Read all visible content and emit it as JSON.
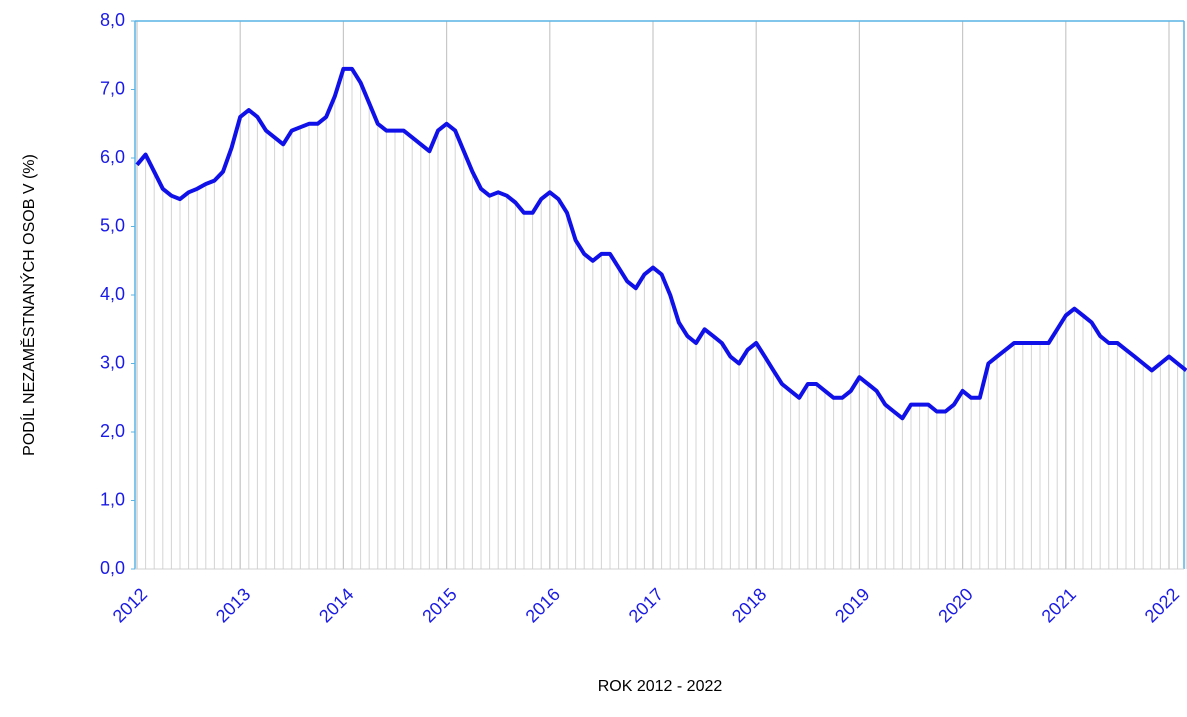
{
  "chart_data": {
    "type": "line",
    "x_label": "ROK 2012 - 2022",
    "y_label": "PODÍL NEZAMĚSTNANÝCH OSOB V (%)",
    "categories": [
      "2012",
      null,
      null,
      null,
      null,
      null,
      null,
      null,
      null,
      null,
      null,
      null,
      "2013",
      null,
      null,
      null,
      null,
      null,
      null,
      null,
      null,
      null,
      null,
      null,
      "2014",
      null,
      null,
      null,
      null,
      null,
      null,
      null,
      null,
      null,
      null,
      null,
      "2015",
      null,
      null,
      null,
      null,
      null,
      null,
      null,
      null,
      null,
      null,
      null,
      "2016",
      null,
      null,
      null,
      null,
      null,
      null,
      null,
      null,
      null,
      null,
      null,
      "2017",
      null,
      null,
      null,
      null,
      null,
      null,
      null,
      null,
      null,
      null,
      null,
      "2018",
      null,
      null,
      null,
      null,
      null,
      null,
      null,
      null,
      null,
      null,
      null,
      "2019",
      null,
      null,
      null,
      null,
      null,
      null,
      null,
      null,
      null,
      null,
      null,
      "2020",
      null,
      null,
      null,
      null,
      null,
      null,
      null,
      null,
      null,
      null,
      null,
      "2021",
      null,
      null,
      null,
      null,
      null,
      null,
      null,
      null,
      null,
      null,
      null,
      "2022",
      null,
      null
    ],
    "series": [
      {
        "color": "#1010e8",
        "values": [
          5.9,
          6.05,
          5.8,
          5.55,
          5.45,
          5.4,
          5.5,
          5.55,
          5.62,
          5.67,
          5.8,
          6.15,
          6.6,
          6.7,
          6.6,
          6.4,
          6.3,
          6.2,
          6.4,
          6.45,
          6.5,
          6.5,
          6.6,
          6.9,
          7.3,
          7.3,
          7.1,
          6.8,
          6.5,
          6.4,
          6.4,
          6.4,
          6.3,
          6.2,
          6.1,
          6.4,
          6.5,
          6.4,
          6.1,
          5.8,
          5.55,
          5.45,
          5.5,
          5.45,
          5.35,
          5.2,
          5.2,
          5.4,
          5.5,
          5.4,
          5.2,
          4.8,
          4.6,
          4.5,
          4.6,
          4.6,
          4.4,
          4.2,
          4.1,
          4.3,
          4.4,
          4.3,
          4.0,
          3.6,
          3.4,
          3.3,
          3.5,
          3.4,
          3.3,
          3.1,
          3.0,
          3.2,
          3.3,
          3.1,
          2.9,
          2.7,
          2.6,
          2.5,
          2.7,
          2.7,
          2.6,
          2.5,
          2.5,
          2.6,
          2.8,
          2.7,
          2.6,
          2.4,
          2.3,
          2.2,
          2.4,
          2.4,
          2.4,
          2.3,
          2.3,
          2.4,
          2.6,
          2.5,
          2.5,
          3.0,
          3.1,
          3.2,
          3.3,
          3.3,
          3.3,
          3.3,
          3.3,
          3.5,
          3.7,
          3.8,
          3.7,
          3.6,
          3.4,
          3.3,
          3.3,
          3.2,
          3.1,
          3.0,
          2.9,
          3.0,
          3.1,
          3.0,
          2.9
        ]
      }
    ],
    "ylim": [
      0,
      8
    ],
    "yticks": [
      {
        "value": 0,
        "label": "0,0"
      },
      {
        "value": 1,
        "label": "1,0"
      },
      {
        "value": 2,
        "label": "2,0"
      },
      {
        "value": 3,
        "label": "3,0"
      },
      {
        "value": 4,
        "label": "4,0"
      },
      {
        "value": 5,
        "label": "5,0"
      },
      {
        "value": 6,
        "label": "6,0"
      },
      {
        "value": 7,
        "label": "7,0"
      },
      {
        "value": 8,
        "label": "8,0"
      }
    ],
    "drop_lines": true,
    "grid": true
  }
}
